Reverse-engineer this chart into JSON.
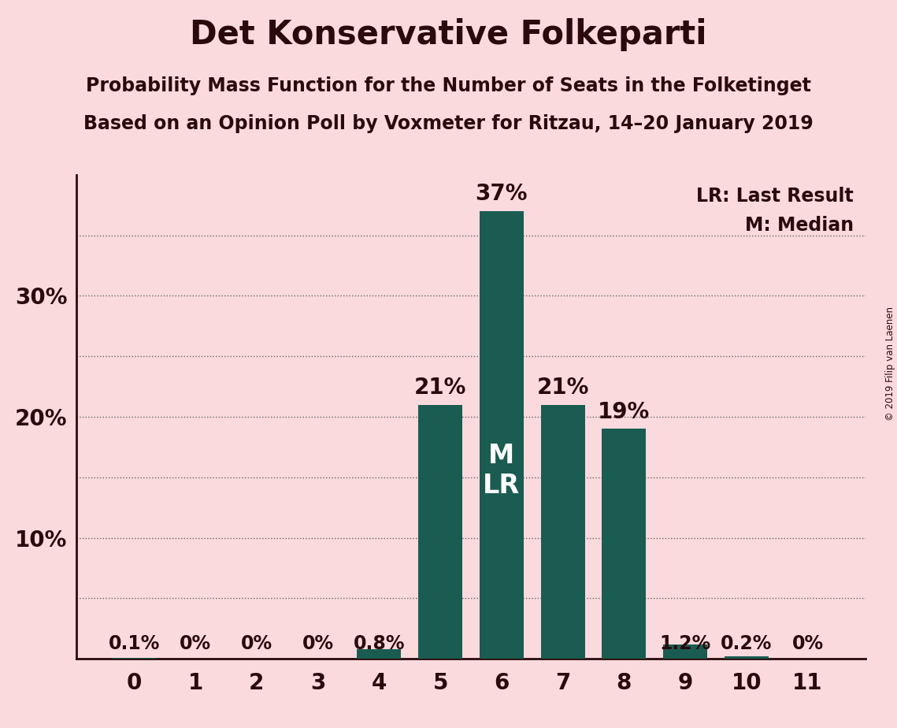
{
  "title": "Det Konservative Folkeparti",
  "subtitle1": "Probability Mass Function for the Number of Seats in the Folketinget",
  "subtitle2": "Based on an Opinion Poll by Voxmeter for Ritzau, 14–20 January 2019",
  "copyright": "© 2019 Filip van Laenen",
  "seats": [
    0,
    1,
    2,
    3,
    4,
    5,
    6,
    7,
    8,
    9,
    10,
    11
  ],
  "probabilities": [
    0.1,
    0.0,
    0.0,
    0.0,
    0.8,
    21.0,
    37.0,
    21.0,
    19.0,
    1.2,
    0.2,
    0.0
  ],
  "bar_color": "#1a5c52",
  "background_color": "#fadadd",
  "text_color": "#2a0a0a",
  "ylim": [
    0,
    40
  ],
  "yticks_labeled": [
    10,
    20,
    30
  ],
  "ytick_labels": [
    "10%",
    "20%",
    "30%"
  ],
  "yticks_grid": [
    5,
    10,
    15,
    20,
    25,
    30,
    35
  ],
  "legend_text1": "LR: Last Result",
  "legend_text2": "M: Median",
  "bar_annotations": [
    "0.1%",
    "0%",
    "0%",
    "0%",
    "0.8%",
    "21%",
    "37%",
    "21%",
    "19%",
    "1.2%",
    "0.2%",
    "0%"
  ],
  "grid_color": "#666666",
  "title_fontsize": 30,
  "subtitle_fontsize": 17,
  "tick_fontsize": 20,
  "annotation_fontsize_small": 17,
  "annotation_fontsize_large": 20,
  "legend_fontsize": 17,
  "ml_fontsize": 24
}
